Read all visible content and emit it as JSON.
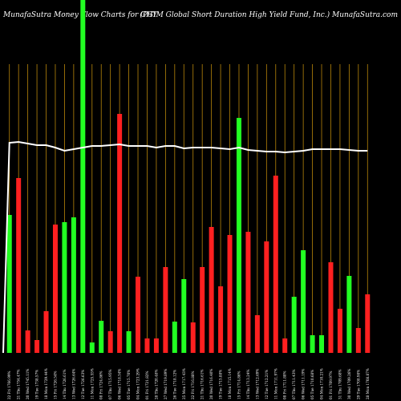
{
  "header": {
    "left": "MunafaSutra  Money Flow  Charts for GHY",
    "right": "(PGIM Global Short Duration  High Yield Fund, Inc.) MunafaSutra.com"
  },
  "colors": {
    "background": "#000000",
    "up": "#22ff22",
    "down": "#ff2020",
    "grid": "#b8860b",
    "line": "#ffffff"
  },
  "chart_data": {
    "type": "bar",
    "title": "",
    "xlabel": "",
    "ylabel": "",
    "grid": true,
    "categories": [
      "22 Fri 1766.99%",
      "21 Thu 1754.47%",
      "20 Wed 1745.11%",
      "19 Tue 1738.57%",
      "18 Mon 1729.44%",
      "15 Fri 1726.54%",
      "14 Thu 1726.61%",
      "13 Wed 1726.64%",
      "12 Tue 1726.63%",
      "11 Mon 1725.55%",
      "08 Fri 1724.86%",
      "07 Thu 1715.95%",
      "06 Wed 1718.54%",
      "05 Tue 1715.70%",
      "04 Mon 1723.29%",
      "01 Fri 1721.82%",
      "28 Thu 1720.48%",
      "27 Wed 1719.89%",
      "26 Tue 1718.12%",
      "25 Mon 1717.43%",
      "22 Fri 1716.88%",
      "21 Thu 1716.61%",
      "20 Wed 1716.40%",
      "19 Tue 1715.88%",
      "18 Mon 1715.14%",
      "15 Fri 1714.86%",
      "14 Thu 1713.24%",
      "13 Wed 1712.69%",
      "12 Tue 1712.21%",
      "11 Mon 1711.97%",
      "08 Fri 1711.88%",
      "07 Thu 1711.43%",
      "06 Wed 1711.19%",
      "05 Tue 1710.68%",
      "04 Mon 1710.21%",
      "01 Fri 1709.97%",
      "31 Thu 1709.68%",
      "30 Wed 1709.26%",
      "29 Tue 1708.98%",
      "28 Mon 1708.87%"
    ],
    "bars": [
      {
        "value": 172,
        "color": "green"
      },
      {
        "value": 218,
        "color": "red"
      },
      {
        "value": 28,
        "color": "red"
      },
      {
        "value": 16,
        "color": "red"
      },
      {
        "value": 52,
        "color": "red"
      },
      {
        "value": 160,
        "color": "red"
      },
      {
        "value": 163,
        "color": "green"
      },
      {
        "value": 169,
        "color": "green"
      },
      {
        "value": 440,
        "color": "green"
      },
      {
        "value": 13,
        "color": "green"
      },
      {
        "value": 40,
        "color": "green"
      },
      {
        "value": 27,
        "color": "red"
      },
      {
        "value": 298,
        "color": "red"
      },
      {
        "value": 27,
        "color": "green"
      },
      {
        "value": 95,
        "color": "red"
      },
      {
        "value": 18,
        "color": "red"
      },
      {
        "value": 18,
        "color": "red"
      },
      {
        "value": 107,
        "color": "red"
      },
      {
        "value": 39,
        "color": "green"
      },
      {
        "value": 92,
        "color": "green"
      },
      {
        "value": 38,
        "color": "red"
      },
      {
        "value": 107,
        "color": "red"
      },
      {
        "value": 157,
        "color": "red"
      },
      {
        "value": 83,
        "color": "red"
      },
      {
        "value": 147,
        "color": "red"
      },
      {
        "value": 293,
        "color": "green"
      },
      {
        "value": 151,
        "color": "red"
      },
      {
        "value": 47,
        "color": "red"
      },
      {
        "value": 139,
        "color": "red"
      },
      {
        "value": 221,
        "color": "red"
      },
      {
        "value": 18,
        "color": "red"
      },
      {
        "value": 70,
        "color": "green"
      },
      {
        "value": 128,
        "color": "green"
      },
      {
        "value": 22,
        "color": "green"
      },
      {
        "value": 22,
        "color": "green"
      },
      {
        "value": 113,
        "color": "red"
      },
      {
        "value": 55,
        "color": "red"
      },
      {
        "value": 96,
        "color": "green"
      },
      {
        "value": 31,
        "color": "red"
      },
      {
        "value": 73,
        "color": "red"
      }
    ],
    "line": [
      262,
      263,
      261,
      259,
      259,
      256,
      252,
      254,
      256,
      258,
      258,
      259,
      260,
      258,
      258,
      258,
      256,
      258,
      258,
      255,
      256,
      256,
      256,
      255,
      254,
      256,
      253,
      252,
      251,
      251,
      250,
      251,
      252,
      254,
      254,
      254,
      254,
      253,
      252,
      252
    ],
    "ylim": [
      0,
      440
    ]
  }
}
